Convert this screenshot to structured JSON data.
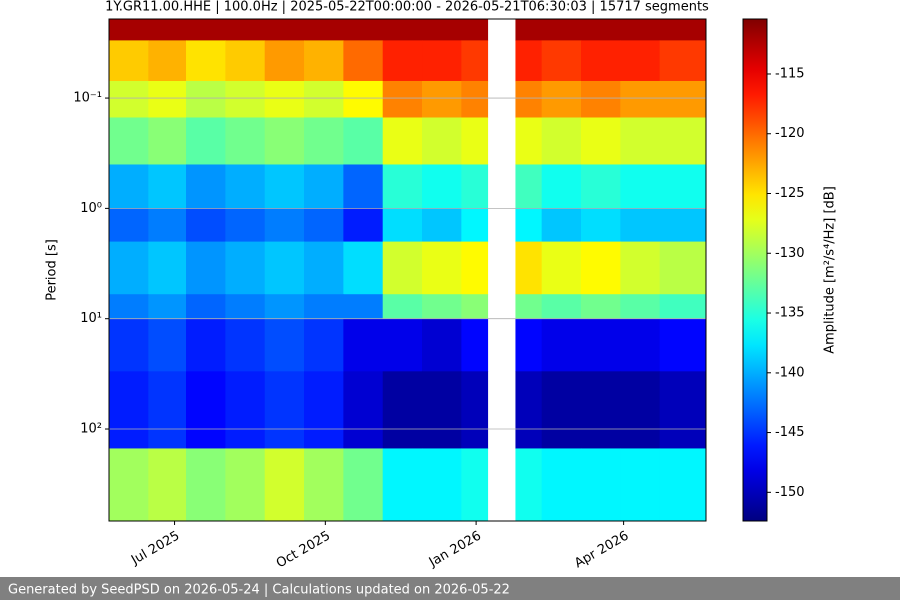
{
  "chart_data": {
    "type": "heatmap",
    "title": "1Y.GR11.00.HHE | 100.0Hz | 2025-05-22T00:00:00 - 2026-05-21T06:30:03 | 15717 segments",
    "y_label": "Period [s]",
    "colorbar_label": "Amplitude [m²/s⁴/Hz] [dB]",
    "footer": "Generated by SeedPSD on 2026-05-24 | Calculations updated on 2026-05-22",
    "colormap": "jet",
    "y_log": true,
    "y_inverted": true,
    "grid": true,
    "xlim": [
      "2025-05-22T00:00:00",
      "2026-05-21T06:30:03"
    ],
    "xticks": [
      {
        "value": "2025-07-01",
        "label": "Jul 2025"
      },
      {
        "value": "2025-10-01",
        "label": "Oct 2025"
      },
      {
        "value": "2026-01-01",
        "label": "Jan 2026"
      },
      {
        "value": "2026-04-01",
        "label": "Apr 2026"
      }
    ],
    "ylim": [
      0.0192,
      682
    ],
    "yticks": [
      {
        "value": 0.1,
        "label": "10⁻¹"
      },
      {
        "value": 1,
        "label": "10⁰"
      },
      {
        "value": 10,
        "label": "10¹"
      },
      {
        "value": 100,
        "label": "10²"
      }
    ],
    "clim": [
      -152.4,
      -110.4
    ],
    "cticks": [
      -150,
      -145,
      -140,
      -135,
      -130,
      -125,
      -120,
      -115
    ],
    "x_edges": [
      "2025-05-22",
      "2025-06-15",
      "2025-07-08",
      "2025-08-01",
      "2025-08-25",
      "2025-09-18",
      "2025-10-12",
      "2025-11-05",
      "2025-11-29",
      "2025-12-23",
      "2026-01-08",
      "2026-01-25",
      "2026-02-10",
      "2026-03-06",
      "2026-03-30",
      "2026-04-23",
      "2026-05-21T06:30:03"
    ],
    "y_edges": [
      0.0192,
      0.03,
      0.07,
      0.15,
      0.4,
      1,
      2,
      6,
      10,
      30,
      150,
      682
    ],
    "z": [
      [
        -112,
        -112,
        -112,
        -112,
        -112,
        -112,
        -112,
        -112,
        -112,
        -112,
        null,
        -112,
        -112,
        -112,
        -112,
        -112
      ],
      [
        -124,
        -123,
        -125,
        -124,
        -122,
        -123,
        -120,
        -117,
        -117,
        -118,
        null,
        -117,
        -118,
        -117,
        -117,
        -118
      ],
      [
        -128,
        -127,
        -129,
        -128,
        -127,
        -128,
        -126,
        -121,
        -122,
        -121,
        null,
        -121,
        -122,
        -121,
        -122,
        -122
      ],
      [
        -132,
        -131,
        -133,
        -132,
        -131,
        -132,
        -133,
        -127,
        -128,
        -127,
        null,
        -127,
        -128,
        -127,
        -128,
        -128
      ],
      [
        -140,
        -139,
        -141,
        -140,
        -139,
        -140,
        -143,
        -135,
        -136,
        -135,
        null,
        -134,
        -136,
        -135,
        -136,
        -136
      ],
      [
        -143,
        -142,
        -144,
        -143,
        -142,
        -143,
        -146,
        -138,
        -139,
        -137,
        null,
        -137,
        -139,
        -138,
        -139,
        -139
      ],
      [
        -140,
        -139,
        -141,
        -140,
        -139,
        -140,
        -138,
        -128,
        -127,
        -126,
        null,
        -125,
        -127,
        -126,
        -128,
        -129
      ],
      [
        -142,
        -141,
        -143,
        -142,
        -141,
        -142,
        -142,
        -133,
        -132,
        -131,
        null,
        -132,
        -133,
        -132,
        -133,
        -134
      ],
      [
        -145,
        -144,
        -146,
        -145,
        -144,
        -145,
        -148,
        -148,
        -149,
        -147,
        null,
        -147,
        -148,
        -148,
        -148,
        -147
      ],
      [
        -146,
        -145,
        -147,
        -146,
        -145,
        -146,
        -149,
        -151,
        -151,
        -150,
        null,
        -150,
        -151,
        -151,
        -151,
        -150
      ],
      [
        -130,
        -129,
        -131,
        -130,
        -128,
        -130,
        -132,
        -137,
        -137,
        -136,
        null,
        -136,
        -137,
        -137,
        -137,
        -137
      ]
    ]
  }
}
